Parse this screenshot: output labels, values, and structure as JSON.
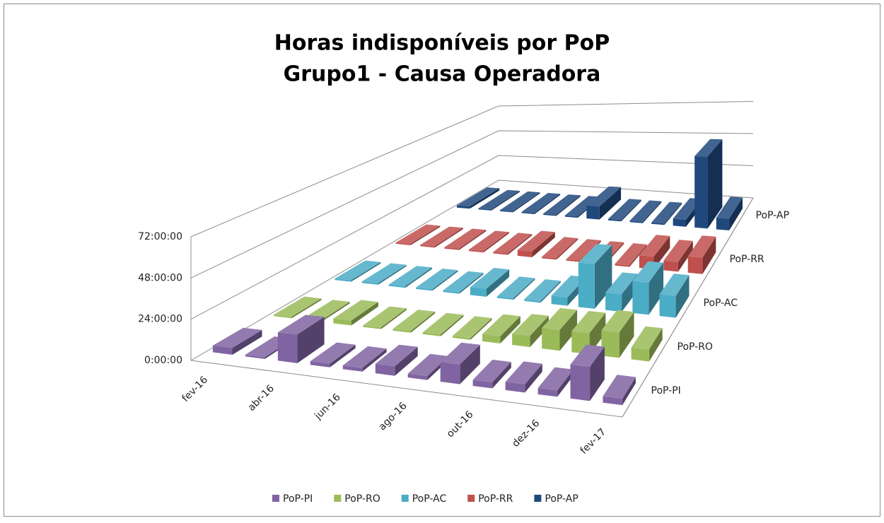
{
  "chart_data": {
    "type": "bar3d",
    "title": "Horas indisponíveis por PoP",
    "subtitle": "Grupo1 - Causa Operadora",
    "categories": [
      "fev-16",
      null,
      "abr-16",
      null,
      "jun-16",
      null,
      "ago-16",
      null,
      "out-16",
      null,
      "dez-16",
      null,
      "fev-17"
    ],
    "series": [
      {
        "name": "PoP-PI",
        "color": "#8064a2",
        "values": [
          4,
          1,
          16,
          2,
          2,
          5,
          2,
          10,
          3,
          4,
          3,
          16,
          3
        ]
      },
      {
        "name": "PoP-RO",
        "color": "#9bbb59",
        "values": [
          1,
          1,
          3,
          1,
          1,
          1,
          1,
          4,
          6,
          11,
          11,
          13,
          6
        ]
      },
      {
        "name": "PoP-AC",
        "color": "#4bacc6",
        "values": [
          1,
          1,
          1,
          1,
          1,
          5,
          1,
          1,
          5,
          26,
          10,
          18,
          12
        ]
      },
      {
        "name": "PoP-RR",
        "color": "#c0504d",
        "values": [
          1,
          1,
          1,
          1,
          1,
          4,
          1,
          1,
          1,
          1,
          8,
          6,
          10
        ]
      },
      {
        "name": "PoP-AP",
        "color": "#1f497d",
        "values": [
          2,
          1,
          1,
          1,
          1,
          1,
          10,
          1,
          1,
          1,
          5,
          50,
          8
        ]
      }
    ],
    "ylim": [
      0,
      72
    ],
    "yticks": [
      {
        "value": 0,
        "label": "0:00:00"
      },
      {
        "value": 24,
        "label": "24:00:00"
      },
      {
        "value": 48,
        "label": "48:00:00"
      },
      {
        "value": 72,
        "label": "72:00:00"
      }
    ],
    "grid": true
  }
}
